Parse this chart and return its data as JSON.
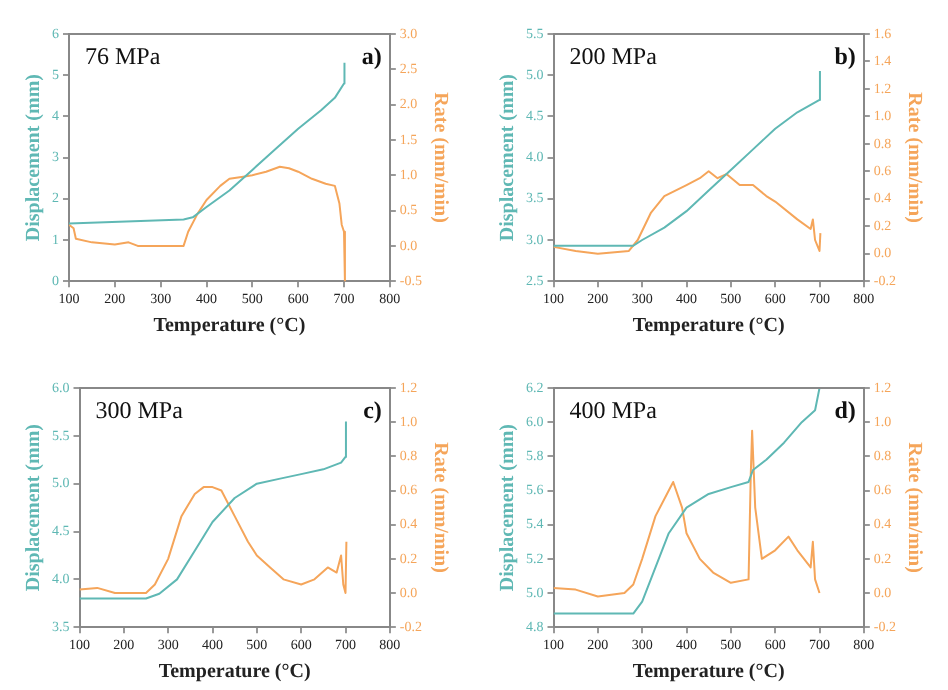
{
  "chart_data": [
    {
      "type": "line",
      "xlabel": "Temperature (°C)",
      "ylabel": "Displacement (mm)",
      "y2label": "Rate (mm/min)",
      "annotations": [
        "76 MPa",
        "a)"
      ],
      "marker": "none",
      "grid": false,
      "xlim": [
        100,
        800
      ],
      "xticks": [
        100,
        200,
        300,
        400,
        500,
        600,
        700,
        800
      ],
      "ylim": [
        0,
        6
      ],
      "yticks": [
        0,
        1,
        2,
        3,
        4,
        5,
        6
      ],
      "y2lim": [
        -0.5,
        3
      ],
      "y2ticks": [
        {
          "value": -0.5,
          "label": "-0.5"
        },
        {
          "value": 0,
          "label": "0.0"
        },
        {
          "value": 0.5,
          "label": "0.5"
        },
        {
          "value": 1,
          "label": "1.0"
        },
        {
          "value": 1.5,
          "label": "1.5"
        },
        {
          "value": 2,
          "label": "2.0"
        },
        {
          "value": 2.5,
          "label": "2.5"
        },
        {
          "value": 3,
          "label": "3.0"
        }
      ],
      "series": [
        {
          "color": "#5fb8b4",
          "x": [
            100,
            350,
            370,
            400,
            450,
            500,
            550,
            600,
            650,
            680,
            700,
            701
          ],
          "values": [
            1.4,
            1.5,
            1.55,
            1.8,
            2.2,
            2.7,
            3.2,
            3.7,
            4.15,
            4.45,
            4.8,
            5.3
          ]
        },
        {
          "color": "#f5a55a",
          "axis": "y2",
          "x": [
            100,
            110,
            115,
            150,
            200,
            230,
            250,
            300,
            350,
            360,
            380,
            400,
            430,
            450,
            480,
            500,
            530,
            560,
            580,
            600,
            630,
            660,
            680,
            690,
            695,
            700,
            702
          ],
          "values": [
            0.3,
            0.25,
            0.1,
            0.05,
            0.02,
            0.05,
            0,
            0,
            0,
            0.2,
            0.45,
            0.65,
            0.85,
            0.95,
            0.98,
            1,
            1.05,
            1.12,
            1.1,
            1.05,
            0.95,
            0.88,
            0.85,
            0.6,
            0.3,
            0.2,
            -0.5
          ]
        }
      ]
    },
    {
      "type": "line",
      "xlabel": "Temperature (°C)",
      "ylabel": "Displacement (mm)",
      "y2label": "Rate (mm/min)",
      "annotations": [
        "200 MPa",
        "b)"
      ],
      "marker": "none",
      "grid": false,
      "xlim": [
        100,
        800
      ],
      "xticks": [
        100,
        200,
        300,
        400,
        500,
        600,
        700,
        800
      ],
      "ylim": [
        2.5,
        5.5
      ],
      "yticks": [
        2.5,
        {
          "value": 3,
          "label": "3.0"
        },
        3.5,
        {
          "value": 4,
          "label": "4.0"
        },
        4.5,
        {
          "value": 5,
          "label": "5.0"
        },
        5.5
      ],
      "y2lim": [
        -0.2,
        1.6
      ],
      "y2ticks": [
        -0.2,
        {
          "value": 0,
          "label": "0.0"
        },
        0.2,
        0.4,
        0.6,
        0.8,
        {
          "value": 1,
          "label": "1.0"
        },
        1.2,
        1.4,
        1.6
      ],
      "series": [
        {
          "color": "#5fb8b4",
          "x": [
            100,
            280,
            300,
            350,
            400,
            450,
            500,
            550,
            600,
            650,
            700,
            701
          ],
          "values": [
            2.93,
            2.93,
            3,
            3.15,
            3.35,
            3.6,
            3.85,
            4.1,
            4.35,
            4.55,
            4.7,
            5.05
          ]
        },
        {
          "color": "#f5a55a",
          "axis": "y2",
          "x": [
            100,
            150,
            200,
            270,
            290,
            320,
            350,
            400,
            430,
            450,
            470,
            490,
            520,
            550,
            580,
            600,
            650,
            680,
            685,
            690,
            700,
            702
          ],
          "values": [
            0.05,
            0.02,
            0,
            0.02,
            0.1,
            0.3,
            0.42,
            0.5,
            0.55,
            0.6,
            0.55,
            0.58,
            0.5,
            0.5,
            0.42,
            0.38,
            0.25,
            0.18,
            0.25,
            0.1,
            0.02,
            0.15
          ]
        }
      ]
    },
    {
      "type": "line",
      "xlabel": "Temperature (°C)",
      "ylabel": "Displacement (mm)",
      "y2label": "Rate (mm/min)",
      "annotations": [
        "300 MPa",
        "c)"
      ],
      "marker": "none",
      "grid": false,
      "xlim": [
        100,
        800
      ],
      "xticks": [
        100,
        200,
        300,
        400,
        500,
        600,
        700,
        800
      ],
      "ylim": [
        3.5,
        6
      ],
      "yticks": [
        3.5,
        {
          "value": 4,
          "label": "4.0"
        },
        4.5,
        {
          "value": 5,
          "label": "5.0"
        },
        5.5,
        {
          "value": 6,
          "label": "6.0"
        }
      ],
      "y2lim": [
        -0.2,
        1.2
      ],
      "y2ticks": [
        -0.2,
        {
          "value": 0,
          "label": "0.0"
        },
        0.2,
        0.4,
        0.6,
        0.8,
        {
          "value": 1,
          "label": "1.0"
        },
        1.2
      ],
      "series": [
        {
          "color": "#5fb8b4",
          "x": [
            100,
            250,
            280,
            320,
            360,
            400,
            450,
            500,
            550,
            600,
            650,
            690,
            700,
            701
          ],
          "values": [
            3.8,
            3.8,
            3.85,
            4,
            4.3,
            4.6,
            4.85,
            5,
            5.05,
            5.1,
            5.15,
            5.22,
            5.28,
            5.65
          ]
        },
        {
          "color": "#f5a55a",
          "axis": "y2",
          "x": [
            100,
            140,
            180,
            250,
            270,
            300,
            330,
            360,
            380,
            400,
            420,
            450,
            480,
            500,
            530,
            560,
            600,
            630,
            660,
            680,
            690,
            695,
            700,
            702
          ],
          "values": [
            0.02,
            0.03,
            0,
            0,
            0.05,
            0.2,
            0.45,
            0.58,
            0.62,
            0.62,
            0.6,
            0.45,
            0.3,
            0.22,
            0.15,
            0.08,
            0.05,
            0.08,
            0.15,
            0.12,
            0.22,
            0.05,
            0,
            0.3
          ]
        }
      ]
    },
    {
      "type": "line",
      "xlabel": "Temperature (°C)",
      "ylabel": "Displacement (mm)",
      "y2label": "Rate (mm/min)",
      "annotations": [
        "400 MPa",
        "d)"
      ],
      "marker": "none",
      "grid": false,
      "xlim": [
        100,
        800
      ],
      "xticks": [
        100,
        200,
        300,
        400,
        500,
        600,
        700,
        800
      ],
      "ylim": [
        4.8,
        6.2
      ],
      "yticks": [
        4.8,
        {
          "value": 5,
          "label": "5.0"
        },
        5.2,
        5.4,
        5.6,
        5.8,
        {
          "value": 6,
          "label": "6.0"
        },
        6.2
      ],
      "y2lim": [
        -0.2,
        1.2
      ],
      "y2ticks": [
        -0.2,
        {
          "value": 0,
          "label": "0.0"
        },
        0.2,
        0.4,
        0.6,
        0.8,
        {
          "value": 1,
          "label": "1.0"
        },
        1.2
      ],
      "series": [
        {
          "color": "#5fb8b4",
          "x": [
            100,
            280,
            300,
            330,
            360,
            400,
            450,
            500,
            540,
            550,
            580,
            620,
            660,
            690,
            700
          ],
          "values": [
            4.88,
            4.88,
            4.95,
            5.15,
            5.35,
            5.5,
            5.58,
            5.62,
            5.65,
            5.72,
            5.78,
            5.88,
            6,
            6.07,
            6.2
          ]
        },
        {
          "color": "#f5a55a",
          "axis": "y2",
          "x": [
            100,
            150,
            200,
            260,
            280,
            300,
            330,
            360,
            370,
            390,
            400,
            430,
            460,
            500,
            540,
            545,
            548,
            555,
            570,
            600,
            630,
            650,
            680,
            685,
            690,
            700
          ],
          "values": [
            0.03,
            0.02,
            -0.02,
            0,
            0.05,
            0.2,
            0.45,
            0.6,
            0.65,
            0.5,
            0.35,
            0.2,
            0.12,
            0.06,
            0.08,
            0.7,
            0.95,
            0.5,
            0.2,
            0.25,
            0.33,
            0.25,
            0.15,
            0.3,
            0.08,
            0
          ]
        }
      ]
    }
  ]
}
